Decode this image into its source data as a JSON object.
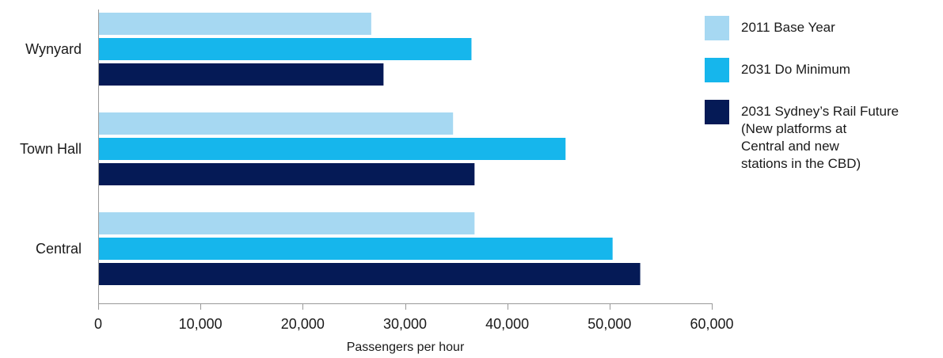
{
  "chart_data": {
    "type": "bar",
    "orientation": "horizontal",
    "categories": [
      "Wynyard",
      "Town Hall",
      "Central"
    ],
    "series": [
      {
        "name": "2011 Base Year",
        "color": "#a6d8f2",
        "values": [
          26700,
          34700,
          36800
        ]
      },
      {
        "name": "2031 Do Minimum",
        "color": "#16b6ec",
        "values": [
          36500,
          45700,
          50300
        ]
      },
      {
        "name": "2031 Sydney’s Rail Future\n(New platforms at\nCentral and new\nstations in the CBD)",
        "color": "#051a56",
        "values": [
          27900,
          36800,
          53000
        ]
      }
    ],
    "xlabel": "Passengers per hour",
    "ylabel": "",
    "xlim": [
      0,
      60000
    ],
    "xticks": [
      0,
      10000,
      20000,
      30000,
      40000,
      50000,
      60000
    ],
    "xtick_labels": [
      "0",
      "10,000",
      "20,000",
      "30,000",
      "40,000",
      "50,000",
      "60,000"
    ],
    "grid": false,
    "legend_position": "right"
  }
}
